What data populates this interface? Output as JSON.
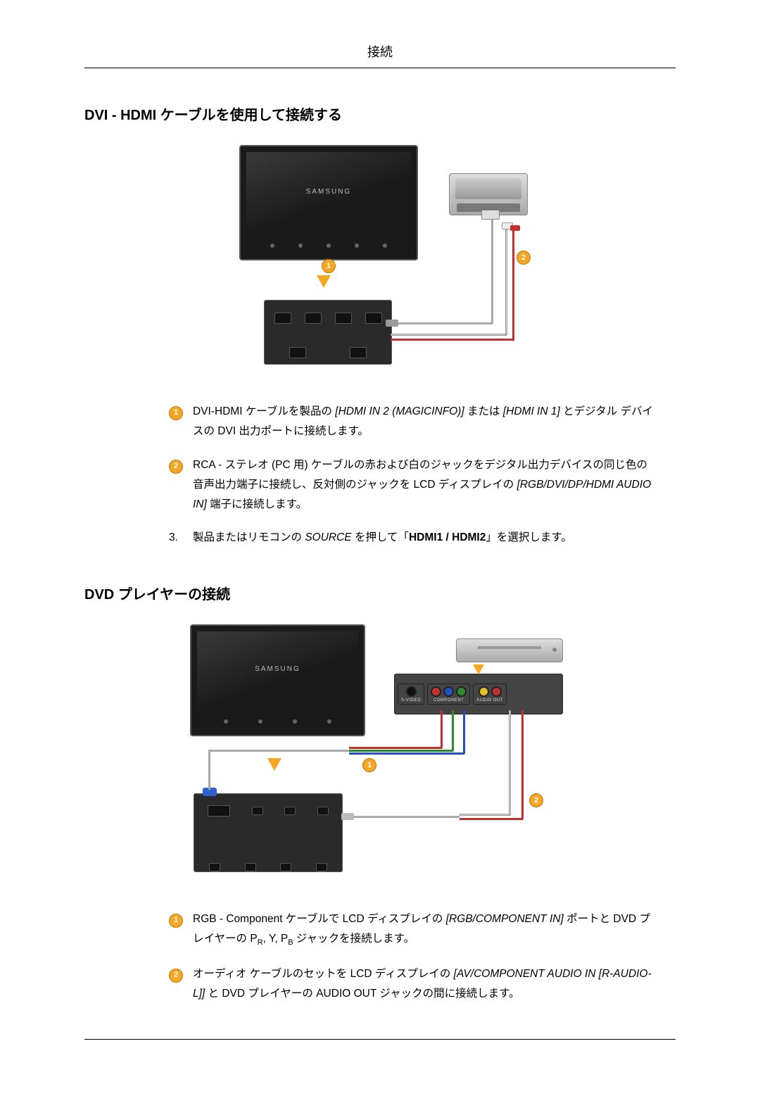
{
  "page_header": "接続",
  "section1": {
    "title": "DVI - HDMI ケーブルを使用して接続する",
    "diagram": {
      "tv_brand": "SAMSUNG",
      "badge1": "1",
      "badge2": "2",
      "colors": {
        "badge_bg": "#f5a623",
        "cable_white": "#dddddd",
        "cable_red": "#c23030",
        "tv_bg": "#1a1a1a",
        "device_bg": "#cccccc"
      }
    },
    "items": [
      {
        "badge": "1",
        "text_parts": [
          {
            "t": "DVI-HDMI ケーブルを製品の "
          },
          {
            "t": "[HDMI IN 2 (MAGICINFO)]",
            "italic": true
          },
          {
            "t": " または "
          },
          {
            "t": "[HDMI IN 1]",
            "italic": true
          },
          {
            "t": " とデジタル デバイスの DVI 出力ポートに接続します。"
          }
        ]
      },
      {
        "badge": "2",
        "text_parts": [
          {
            "t": "RCA - ステレオ (PC 用) ケーブルの赤および白のジャックをデジタル出力デバイスの同じ色の音声出力端子に接続し、反対側のジャックを LCD ディスプレイの "
          },
          {
            "t": "[RGB/DVI/DP/HDMI AUDIO IN]",
            "italic": true
          },
          {
            "t": " 端子に接続します。"
          }
        ]
      },
      {
        "number": "3.",
        "text_parts": [
          {
            "t": "製品またはリモコンの "
          },
          {
            "t": "SOURCE",
            "italic": true
          },
          {
            "t": " を押して「"
          },
          {
            "t": "HDMI1 / HDMI2",
            "bold": true
          },
          {
            "t": "」を選択します。"
          }
        ]
      }
    ]
  },
  "section2": {
    "title": "DVD プレイヤーの接続",
    "diagram": {
      "tv_brand": "SAMSUNG",
      "badge1": "1",
      "badge2": "2",
      "labels": {
        "svideo": "S-VIDEO",
        "component": "COMPONENT",
        "audio_out": "AUDIO OUT"
      },
      "colors": {
        "badge_bg": "#f5a623",
        "cable_red": "#c23030",
        "cable_green": "#2d8a2d",
        "cable_blue": "#2050c0",
        "cable_white": "#dddddd",
        "cable_gray": "#aaaaaa"
      }
    },
    "items": [
      {
        "badge": "1",
        "text_parts": [
          {
            "t": "RGB - Component ケーブルで LCD ディスプレイの "
          },
          {
            "t": "[RGB/COMPONENT IN]",
            "italic": true
          },
          {
            "t": " ポートと DVD プレイヤーの P"
          },
          {
            "t": "R",
            "sub": true
          },
          {
            "t": ", Y, P"
          },
          {
            "t": "B",
            "sub": true
          },
          {
            "t": " ジャックを接続します。"
          }
        ]
      },
      {
        "badge": "2",
        "text_parts": [
          {
            "t": "オーディオ ケーブルのセットを LCD ディスプレイの "
          },
          {
            "t": "[AV/COMPONENT AUDIO IN [R-AUDIO-L]]",
            "italic": true
          },
          {
            "t": " と DVD プレイヤーの AUDIO OUT ジャックの間に接続します。"
          }
        ]
      }
    ]
  }
}
